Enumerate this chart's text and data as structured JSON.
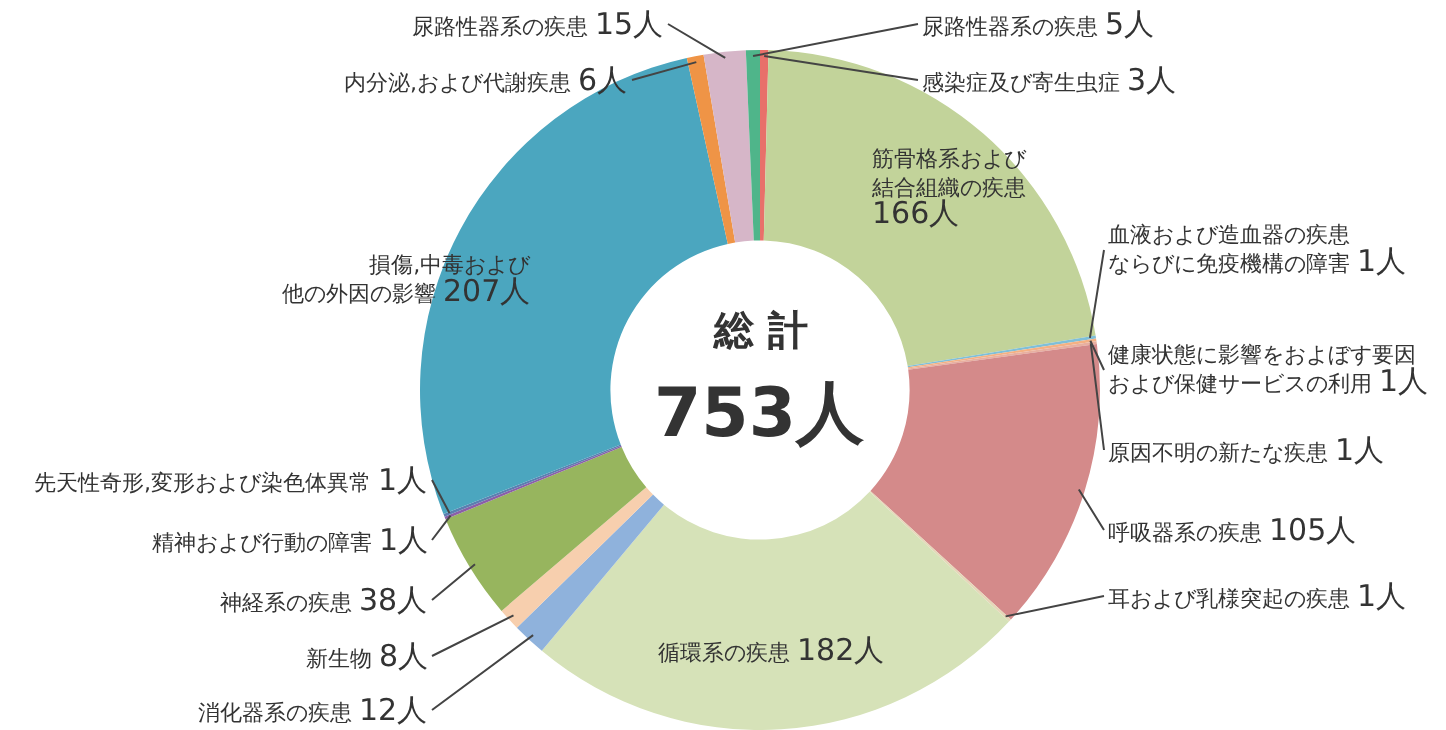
{
  "chart_data": {
    "type": "donut",
    "categories": [
      "感染症及び寄生虫症",
      "筋骨格系および結合組織の疾患",
      "血液および造血器の疾患ならびに免疫機構の障害",
      "健康状態に影響をおよぼす要因および保健サービスの利用",
      "原因不明の新たな疾患",
      "呼吸器系の疾患",
      "耳および乳様突起の疾患",
      "循環系の疾患",
      "消化器系の疾患",
      "新生物",
      "神経系の疾患",
      "精神および行動の障害",
      "先天性奇形,変形および染色体異常",
      "損傷,中毒および他の外因の影響",
      "内分泌,および代謝疾患",
      "尿路性器系の疾患",
      "尿路性器系の疾患"
    ],
    "values": [
      3,
      166,
      1,
      1,
      1,
      105,
      1,
      182,
      12,
      8,
      38,
      1,
      1,
      207,
      6,
      15,
      5
    ],
    "value_labels": [
      "3人",
      "166人",
      "1人",
      "1人",
      "1人",
      "105人",
      "1人",
      "182人",
      "12人",
      "8人",
      "38人",
      "1人",
      "1人",
      "207人",
      "6人",
      "15人",
      "5人"
    ],
    "colors": [
      "#e8706a",
      "#c2d39a",
      "#7fbfd8",
      "#f4b183",
      "#e8b0a0",
      "#d48a8a",
      "#e6d6b8",
      "#d6e2b8",
      "#8fb2dc",
      "#f7cfae",
      "#97b55e",
      "#8a5fa8",
      "#5a7fb0",
      "#4ba6bf",
      "#ef9446",
      "#d6b6c8",
      "#4fb58a"
    ],
    "annotations": [
      "総 計",
      "753人"
    ]
  }
}
